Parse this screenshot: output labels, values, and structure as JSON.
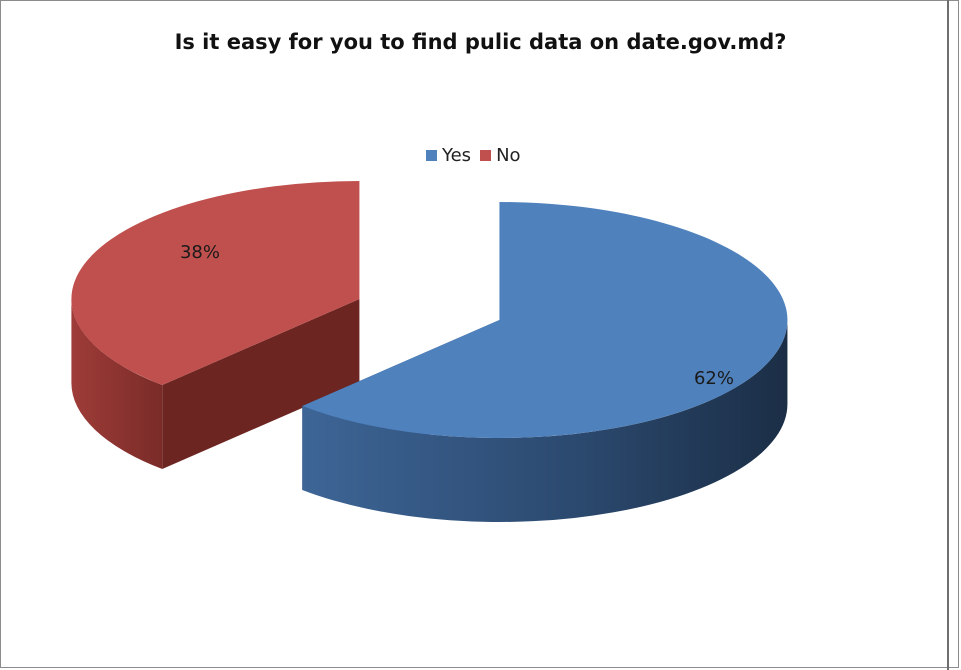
{
  "chart_data": {
    "type": "pie",
    "title": "Is it easy for you to find pulic data on date.gov.md?",
    "categories": [
      "Yes",
      "No"
    ],
    "values": [
      62,
      38
    ],
    "value_labels": [
      "62%",
      "38%"
    ],
    "colors": [
      "#4F81BD",
      "#C0504D"
    ],
    "three_d": true,
    "exploded": true,
    "legend_position": "top"
  }
}
